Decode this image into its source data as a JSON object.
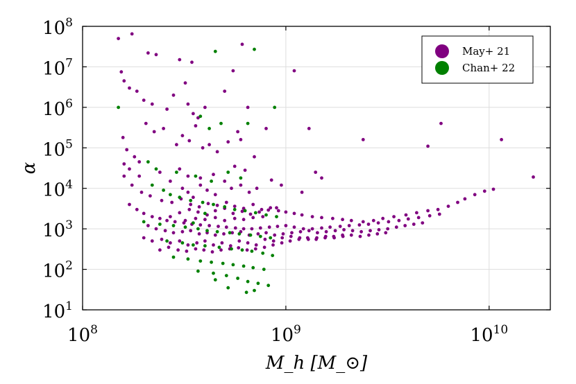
{
  "chart_data": {
    "type": "scatter",
    "title": "",
    "xlabel": "M_h [M_⊙]",
    "ylabel": "α",
    "xscale": "log",
    "yscale": "log",
    "xlim": [
      100000000.0,
      20000000000.0
    ],
    "ylim": [
      10,
      100000000.0
    ],
    "x_ticks": [
      {
        "base": "10",
        "exp": "8"
      },
      {
        "base": "10",
        "exp": "9"
      },
      {
        "base": "10",
        "exp": "10"
      }
    ],
    "y_ticks": [
      {
        "base": "10",
        "exp": "1"
      },
      {
        "base": "10",
        "exp": "2"
      },
      {
        "base": "10",
        "exp": "3"
      },
      {
        "base": "10",
        "exp": "4"
      },
      {
        "base": "10",
        "exp": "5"
      },
      {
        "base": "10",
        "exp": "6"
      },
      {
        "base": "10",
        "exp": "7"
      },
      {
        "base": "10",
        "exp": "8"
      }
    ],
    "grid": true,
    "legend_position": "top-right",
    "series": [
      {
        "name": "May+ 21",
        "color": "#800080",
        "x": [
          150000000.0,
          175000000.0,
          210000000.0,
          230000000.0,
          300000000.0,
          345000000.0,
          610000000.0,
          1100000000.0,
          155000000.0,
          160000000.0,
          170000000.0,
          185000000.0,
          200000000.0,
          220000000.0,
          260000000.0,
          280000000.0,
          320000000.0,
          330000000.0,
          350000000.0,
          370000000.0,
          400000000.0,
          500000000.0,
          550000000.0,
          650000000.0,
          158000000.0,
          165000000.0,
          180000000.0,
          190000000.0,
          205000000.0,
          225000000.0,
          250000000.0,
          290000000.0,
          310000000.0,
          335000000.0,
          360000000.0,
          390000000.0,
          420000000.0,
          460000000.0,
          520000000.0,
          580000000.0,
          600000000.0,
          700000000.0,
          800000000.0,
          160000000.0,
          170000000.0,
          190000000.0,
          240000000.0,
          270000000.0,
          300000000.0,
          330000000.0,
          380000000.0,
          440000000.0,
          560000000.0,
          630000000.0,
          1300000000.0,
          1400000000.0,
          2400000000.0,
          5000000000.0,
          5800000000.0,
          11500000000.0,
          310000000.0,
          330000000.0,
          350000000.0,
          380000000.0,
          410000000.0,
          450000000.0,
          500000000.0,
          540000000.0,
          600000000.0,
          660000000.0,
          720000000.0,
          850000000.0,
          950000000.0,
          1200000000.0,
          1500000000.0,
          160000000.0,
          175000000.0,
          195000000.0,
          215000000.0,
          245000000.0,
          275000000.0,
          305000000.0,
          340000000.0,
          375000000.0,
          415000000.0,
          460000000.0,
          510000000.0,
          560000000.0,
          620000000.0,
          690000000.0,
          760000000.0,
          840000000.0,
          920000000.0,
          1000000000.0,
          1100000000.0,
          1200000000.0,
          1350000000.0,
          1500000000.0,
          1700000000.0,
          1900000000.0,
          2100000000.0,
          2400000000.0,
          2700000000.0,
          3000000000.0,
          3400000000.0,
          3900000000.0,
          4400000000.0,
          5000000000.0,
          5600000000.0,
          6300000000.0,
          7000000000.0,
          7600000000.0,
          8500000000.0,
          9500000000.0,
          10500000000.0,
          16500000000.0,
          170000000.0,
          185000000.0,
          200000000.0,
          220000000.0,
          240000000.0,
          260000000.0,
          285000000.0,
          315000000.0,
          345000000.0,
          380000000.0,
          420000000.0,
          465000000.0,
          510000000.0,
          565000000.0,
          620000000.0,
          680000000.0,
          750000000.0,
          830000000.0,
          910000000.0,
          1000000000.0,
          1100000000.0,
          1220000000.0,
          1350000000.0,
          1500000000.0,
          1650000000.0,
          1850000000.0,
          2050000000.0,
          2300000000.0,
          2550000000.0,
          2850000000.0,
          3200000000.0,
          3600000000.0,
          4000000000.0,
          4500000000.0,
          5100000000.0,
          5700000000.0,
          210000000.0,
          230000000.0,
          255000000.0,
          280000000.0,
          310000000.0,
          340000000.0,
          375000000.0,
          410000000.0,
          450000000.0,
          495000000.0,
          545000000.0,
          600000000.0,
          660000000.0,
          730000000.0,
          800000000.0,
          880000000.0,
          970000000.0,
          1070000000.0,
          1180000000.0,
          1300000000.0,
          1430000000.0,
          1580000000.0,
          1750000000.0,
          1930000000.0,
          2130000000.0,
          2350000000.0,
          2600000000.0,
          2870000000.0,
          3170000000.0,
          3500000000.0,
          3860000000.0,
          4260000000.0,
          4700000000.0,
          200000000.0,
          220000000.0,
          245000000.0,
          270000000.0,
          300000000.0,
          330000000.0,
          365000000.0,
          400000000.0,
          440000000.0,
          485000000.0,
          535000000.0,
          590000000.0,
          650000000.0,
          715000000.0,
          790000000.0,
          870000000.0,
          960000000.0,
          1060000000.0,
          1170000000.0,
          1290000000.0,
          1420000000.0,
          1570000000.0,
          1730000000.0,
          1910000000.0,
          2100000000.0,
          2320000000.0,
          2560000000.0,
          2820000000.0,
          3100000000.0,
          240000000.0,
          265000000.0,
          295000000.0,
          325000000.0,
          360000000.0,
          395000000.0,
          435000000.0,
          480000000.0,
          530000000.0,
          585000000.0,
          645000000.0,
          710000000.0,
          785000000.0,
          865000000.0,
          955000000.0,
          1050000000.0,
          1160000000.0,
          1280000000.0,
          1410000000.0,
          1560000000.0,
          1720000000.0,
          1900000000.0,
          270000000.0,
          300000000.0,
          335000000.0,
          370000000.0,
          410000000.0,
          450000000.0,
          500000000.0,
          550000000.0,
          610000000.0,
          670000000.0,
          740000000.0,
          820000000.0,
          900000000.0,
          320000000.0,
          360000000.0,
          400000000.0,
          450000000.0,
          500000000.0,
          560000000.0,
          620000000.0,
          690000000.0,
          770000000.0
        ],
        "y": [
          50000000.0,
          65000000.0,
          22000000.0,
          20000000.0,
          15000000.0,
          13000000.0,
          36000000.0,
          8000000.0,
          7500000.0,
          4500000.0,
          3000000.0,
          2500000.0,
          1500000.0,
          1200000.0,
          900000.0,
          2000000.0,
          4000000.0,
          1200000.0,
          700000.0,
          550000.0,
          1000000.0,
          2500000.0,
          8000000.0,
          1000000.0,
          180000.0,
          90000.0,
          60000.0,
          45000.0,
          400000.0,
          250000.0,
          300000.0,
          120000.0,
          200000.0,
          150000.0,
          350000.0,
          100000.0,
          120000.0,
          80000.0,
          140000.0,
          250000.0,
          160000.0,
          60000.0,
          300000.0,
          40000.0,
          30000.0,
          20000.0,
          25000.0,
          15000.0,
          30000.0,
          20000.0,
          18000.0,
          22000.0,
          35000.0,
          28000.0,
          300000.0,
          25000.0,
          160000.0,
          110000.0,
          400000.0,
          160000.0,
          10000.0,
          8000.0,
          6000.0,
          12000.0,
          9000.0,
          7000.0,
          15000.0,
          10000.0,
          12000.0,
          8000.0,
          10000.0,
          16000.0,
          12000.0,
          8000.0,
          18000.0,
          20000.0,
          12000.0,
          8000.0,
          6500.0,
          5000.0,
          4500.0,
          5500.0,
          4000.0,
          3500.0,
          4200.0,
          3800.0,
          4500.0,
          3600.0,
          3200.0,
          4000.0,
          3000.0,
          3300.0,
          2800.0,
          2600.0,
          2400.0,
          2200.0,
          2000.0,
          1900.0,
          1800.0,
          1700.0,
          1600.0,
          1500.0,
          1600.0,
          1800.0,
          2000.0,
          2200.0,
          2500.0,
          2800.0,
          3000.0,
          3600.0,
          4500.0,
          5500.0,
          7000.0,
          8500.0,
          9500.0,
          19000.0,
          4000.0,
          3000.0,
          2400.0,
          2000.0,
          1800.0,
          1600.0,
          1500.0,
          1400.0,
          1300.0,
          1250.0,
          1200.0,
          1150.0,
          1100.0,
          1050.0,
          1000.0,
          1000.0,
          1050.0,
          1100.0,
          1150.0,
          1200.0,
          1100.0,
          1000.0,
          1000.0,
          1050.0,
          1100.0,
          1150.0,
          1200.0,
          1250.0,
          1300.0,
          1400.0,
          1500.0,
          1600.0,
          1750.0,
          1900.0,
          2100.0,
          2300.0,
          1200.0,
          1000.0,
          900.0,
          800.0,
          850.0,
          900.0,
          750.0,
          800.0,
          700.0,
          750.0,
          800.0,
          850.0,
          700.0,
          750.0,
          800.0,
          700.0,
          750.0,
          800.0,
          850.0,
          900.0,
          800.0,
          850.0,
          900.0,
          950.0,
          900.0,
          850.0,
          900.0,
          950.0,
          1000.0,
          1100.0,
          1200.0,
          1300.0,
          1400.0,
          600.0,
          500.0,
          550.0,
          450.0,
          500.0,
          400.0,
          450.0,
          500.0,
          400.0,
          450.0,
          380.0,
          500.0,
          450.0,
          400.0,
          550.0,
          500.0,
          600.0,
          650.0,
          600.0,
          550.0,
          600.0,
          650.0,
          600.0,
          650.0,
          700.0,
          650.0,
          700.0,
          750.0,
          800.0,
          300.0,
          350.0,
          300.0,
          280.0,
          320.0,
          300.0,
          270.0,
          300.0,
          320.0,
          340.0,
          300.0,
          320.0,
          350.0,
          400.0,
          450.0,
          500.0,
          550.0,
          600.0,
          550.0,
          600.0,
          650.0,
          700.0,
          2000.0,
          2500.0,
          3000.0,
          2600.0,
          2200.0,
          2800.0,
          3200.0,
          2400.0,
          2700.0,
          2300.0,
          2600.0,
          2900.0,
          3300.0,
          1600.0,
          1800.0,
          1700.0,
          1900.0,
          1600.0,
          1800.0,
          1700.0,
          1900.0,
          2000.0
        ]
      },
      {
        "name": "Chan+ 22",
        "color": "#008000",
        "x": [
          150000000.0,
          450000000.0,
          700000000.0,
          650000000.0,
          380000000.0,
          420000000.0,
          480000000.0,
          880000000.0,
          210000000.0,
          230000000.0,
          290000000.0,
          360000000.0,
          430000000.0,
          520000000.0,
          600000000.0,
          220000000.0,
          250000000.0,
          270000000.0,
          300000000.0,
          340000000.0,
          390000000.0,
          440000000.0,
          500000000.0,
          560000000.0,
          630000000.0,
          710000000.0,
          800000000.0,
          900000000.0,
          200000000.0,
          240000000.0,
          280000000.0,
          320000000.0,
          370000000.0,
          410000000.0,
          460000000.0,
          530000000.0,
          590000000.0,
          670000000.0,
          750000000.0,
          840000000.0,
          260000000.0,
          310000000.0,
          350000000.0,
          400000000.0,
          470000000.0,
          540000000.0,
          610000000.0,
          680000000.0,
          770000000.0,
          860000000.0,
          280000000.0,
          330000000.0,
          380000000.0,
          430000000.0,
          490000000.0,
          550000000.0,
          620000000.0,
          690000000.0,
          780000000.0,
          370000000.0,
          440000000.0,
          510000000.0,
          580000000.0,
          650000000.0,
          730000000.0,
          820000000.0,
          450000000.0,
          520000000.0,
          640000000.0,
          700000000.0,
          350000000.0,
          400000000.0
        ],
        "y": [
          1000000.0,
          24000000.0,
          27000000.0,
          400000.0,
          600000.0,
          300000.0,
          400000.0,
          1000000.0,
          45000.0,
          30000.0,
          25000.0,
          20000.0,
          15000.0,
          25000.0,
          18000.0,
          12000.0,
          9000.0,
          7000.0,
          6000.0,
          5000.0,
          4500.0,
          4000.0,
          3500.0,
          3000.0,
          2800.0,
          2500.0,
          2200.0,
          2000.0,
          1500.0,
          1300.0,
          1200.0,
          1100.0,
          1000.0,
          900.0,
          850.0,
          800.0,
          750.0,
          700.0,
          650.0,
          600.0,
          500.0,
          450.0,
          400.0,
          380.0,
          350.0,
          320.0,
          300.0,
          280.0,
          250.0,
          220.0,
          200.0,
          180.0,
          160.0,
          150.0,
          140.0,
          130.0,
          120.0,
          110.0,
          100.0,
          90.0,
          80.0,
          70.0,
          60.0,
          50.0,
          45.0,
          40.0,
          55.0,
          35.0,
          27.0,
          30.0,
          1400.0,
          2400.0
        ]
      }
    ]
  }
}
